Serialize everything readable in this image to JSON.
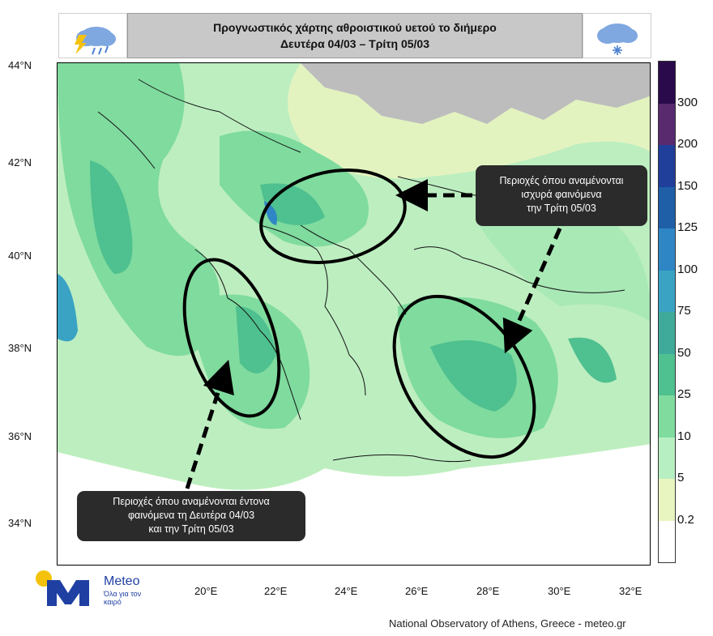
{
  "title": {
    "line1": "Προγνωστικός χάρτης αθροιστικού υετού το διήμερο",
    "line2": "Δευτέρα 04/03 – Τρίτη 05/03"
  },
  "icons": {
    "left": "thunderstorm-rain-cloud-icon",
    "right": "snow-cloud-icon"
  },
  "axes": {
    "lat_labels": [
      "44°N",
      "42°N",
      "40°N",
      "38°N",
      "36°N",
      "34°N"
    ],
    "lon_labels": [
      "20°E",
      "22°E",
      "24°E",
      "26°E",
      "28°E",
      "30°E",
      "32°E"
    ]
  },
  "callouts": {
    "northeast": {
      "line1": "Περιοχές όπου αναμένονται",
      "line2": "ισχυρά φαινόμενα",
      "line3": "την Τρίτη 05/03"
    },
    "southwest": {
      "line1": "Περιοχές όπου αναμένονται έντονα",
      "line2": "φαινόμενα τη Δευτέρα 04/03",
      "line3": "και την Τρίτη 05/03"
    }
  },
  "colorbar": {
    "labels": [
      "300",
      "200",
      "150",
      "125",
      "100",
      "75",
      "50",
      "25",
      "10",
      "5",
      "0.2"
    ],
    "colors": [
      "#2a0a4a",
      "#5a2a6e",
      "#1f3f9a",
      "#1e5fa8",
      "#2f86c4",
      "#3aa3c4",
      "#3faa9a",
      "#4fc08f",
      "#7fdb9e",
      "#b8efc2",
      "#e8f5c0",
      "#ffffff"
    ]
  },
  "brand": {
    "name": "Meteo",
    "tagline": "Όλα για τον καιρό"
  },
  "credit": "National Observatory of Athens, Greece - meteo.gr"
}
